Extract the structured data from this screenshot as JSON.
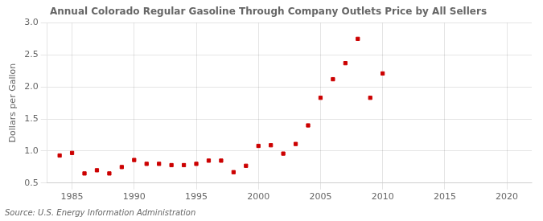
{
  "chart_data": {
    "type": "scatter",
    "title": "Annual Colorado Regular Gasoline Through Company Outlets Price by All Sellers",
    "ylabel": "Dollars per Gallon",
    "annotation": "Source: U.S. Energy Information Administration",
    "x": [
      1984,
      1985,
      1986,
      1987,
      1988,
      1989,
      1990,
      1991,
      1992,
      1993,
      1994,
      1995,
      1996,
      1997,
      1998,
      1999,
      2000,
      2001,
      2002,
      2003,
      2004,
      2005,
      2006,
      2007,
      2008,
      2009,
      2010
    ],
    "values": [
      0.93,
      0.97,
      0.65,
      0.7,
      0.65,
      0.75,
      0.86,
      0.8,
      0.8,
      0.78,
      0.78,
      0.8,
      0.85,
      0.85,
      0.67,
      0.77,
      1.08,
      1.09,
      0.96,
      1.11,
      1.4,
      1.83,
      2.12,
      2.37,
      2.75,
      1.83,
      2.21
    ],
    "color": "#cc0000",
    "marker": "square",
    "xlim": [
      1983,
      2022
    ],
    "ylim": [
      0.5,
      3.0
    ],
    "xticks": [
      1985,
      1990,
      1995,
      2000,
      2005,
      2010,
      2015,
      2020
    ],
    "yticks": [
      0.5,
      {
        "value": 1.0,
        "label": "1.0"
      },
      1.5,
      {
        "value": 2.0,
        "label": "2.0"
      },
      2.5,
      {
        "value": 3.0,
        "label": "3.0"
      }
    ],
    "grid": true
  }
}
